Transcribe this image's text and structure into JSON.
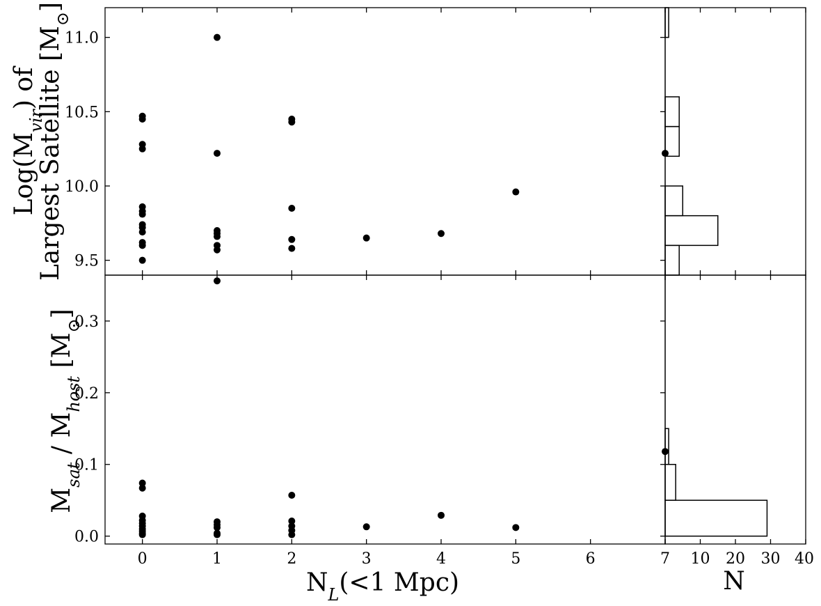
{
  "chart_data": [
    {
      "id": "top_scatter",
      "type": "scatter",
      "title": "",
      "xlabel_parts": [
        "N",
        "L",
        "(<1 Mpc)"
      ],
      "ylabel_lines": [
        [
          "Log(M",
          "vir",
          ") of"
        ],
        [
          "Largest Satellite [M",
          "⊙",
          "]"
        ]
      ],
      "xlim": [
        -0.5,
        7
      ],
      "ylim": [
        9.4,
        11.2
      ],
      "x_ticks": [
        0,
        1,
        2,
        3,
        4,
        5,
        6,
        7
      ],
      "y_ticks": [
        9.5,
        10.0,
        10.5,
        11.0
      ],
      "y_tick_labels": [
        "9.5",
        "10.0",
        "10.5",
        "11.0"
      ],
      "grid": false,
      "points": [
        {
          "x": 0,
          "y": 10.47
        },
        {
          "x": 0,
          "y": 10.45
        },
        {
          "x": 0,
          "y": 10.28
        },
        {
          "x": 0,
          "y": 10.25
        },
        {
          "x": 0,
          "y": 9.86
        },
        {
          "x": 0,
          "y": 9.83
        },
        {
          "x": 0,
          "y": 9.81
        },
        {
          "x": 0,
          "y": 9.74
        },
        {
          "x": 0,
          "y": 9.72
        },
        {
          "x": 0,
          "y": 9.69
        },
        {
          "x": 0,
          "y": 9.62
        },
        {
          "x": 0,
          "y": 9.6
        },
        {
          "x": 0,
          "y": 9.5
        },
        {
          "x": 1,
          "y": 11.0
        },
        {
          "x": 1,
          "y": 10.22
        },
        {
          "x": 1,
          "y": 9.7
        },
        {
          "x": 1,
          "y": 9.68
        },
        {
          "x": 1,
          "y": 9.66
        },
        {
          "x": 1,
          "y": 9.6
        },
        {
          "x": 1,
          "y": 9.57
        },
        {
          "x": 2,
          "y": 10.45
        },
        {
          "x": 2,
          "y": 10.43
        },
        {
          "x": 2,
          "y": 9.85
        },
        {
          "x": 2,
          "y": 9.64
        },
        {
          "x": 2,
          "y": 9.58
        },
        {
          "x": 3,
          "y": 9.65
        },
        {
          "x": 4,
          "y": 9.68
        },
        {
          "x": 5,
          "y": 9.96
        },
        {
          "x": 7,
          "y": 10.22
        }
      ]
    },
    {
      "id": "bottom_scatter",
      "type": "scatter",
      "title": "",
      "xlabel_parts": [
        "N",
        "L",
        "(<1 Mpc)"
      ],
      "ylabel_lines": [
        [
          "M",
          "sat",
          " / M",
          "host",
          " [M",
          "⊙",
          "]"
        ]
      ],
      "xlim": [
        -0.5,
        7
      ],
      "ylim": [
        -0.011,
        0.364
      ],
      "x_ticks": [
        0,
        1,
        2,
        3,
        4,
        5,
        6,
        7
      ],
      "x_tick_labels": [
        "0",
        "1",
        "2",
        "3",
        "4",
        "5",
        "6",
        "7"
      ],
      "y_ticks": [
        0.0,
        0.1,
        0.2,
        0.3
      ],
      "y_tick_labels": [
        "0.0",
        "0.1",
        "0.2",
        "0.3"
      ],
      "grid": false,
      "points": [
        {
          "x": 0,
          "y": 0.074
        },
        {
          "x": 0,
          "y": 0.067
        },
        {
          "x": 0,
          "y": 0.028
        },
        {
          "x": 0,
          "y": 0.022
        },
        {
          "x": 0,
          "y": 0.018
        },
        {
          "x": 0,
          "y": 0.014
        },
        {
          "x": 0,
          "y": 0.01
        },
        {
          "x": 0,
          "y": 0.007
        },
        {
          "x": 0,
          "y": 0.004
        },
        {
          "x": 0,
          "y": 0.002
        },
        {
          "x": 1,
          "y": 0.356
        },
        {
          "x": 1,
          "y": 0.02
        },
        {
          "x": 1,
          "y": 0.016
        },
        {
          "x": 1,
          "y": 0.012
        },
        {
          "x": 1,
          "y": 0.004
        },
        {
          "x": 1,
          "y": 0.002
        },
        {
          "x": 2,
          "y": 0.057
        },
        {
          "x": 2,
          "y": 0.021
        },
        {
          "x": 2,
          "y": 0.014
        },
        {
          "x": 2,
          "y": 0.008
        },
        {
          "x": 2,
          "y": 0.002
        },
        {
          "x": 3,
          "y": 0.013
        },
        {
          "x": 4,
          "y": 0.029
        },
        {
          "x": 5,
          "y": 0.012
        },
        {
          "x": 7,
          "y": 0.118
        }
      ]
    },
    {
      "id": "top_histogram",
      "type": "bar",
      "orientation": "horizontal",
      "title": "",
      "xlim": [
        0,
        40
      ],
      "ylim": [
        9.4,
        11.2
      ],
      "bins": [
        {
          "from": 9.4,
          "to": 9.6,
          "count": 4
        },
        {
          "from": 9.6,
          "to": 9.8,
          "count": 15
        },
        {
          "from": 9.8,
          "to": 10.0,
          "count": 5
        },
        {
          "from": 10.0,
          "to": 10.2,
          "count": 0
        },
        {
          "from": 10.2,
          "to": 10.4,
          "count": 4
        },
        {
          "from": 10.4,
          "to": 10.6,
          "count": 4
        },
        {
          "from": 10.6,
          "to": 10.8,
          "count": 0
        },
        {
          "from": 10.8,
          "to": 11.0,
          "count": 0
        },
        {
          "from": 11.0,
          "to": 11.2,
          "count": 1
        }
      ]
    },
    {
      "id": "bottom_histogram",
      "type": "bar",
      "orientation": "horizontal",
      "title": "",
      "xlabel": "N",
      "xlim": [
        0,
        40
      ],
      "ylim": [
        -0.011,
        0.364
      ],
      "x_ticks": [
        0,
        10,
        20,
        30,
        40
      ],
      "x_tick_labels": [
        "10",
        "20",
        "30",
        "40"
      ],
      "bins": [
        {
          "from": 0.0,
          "to": 0.05,
          "count": 29
        },
        {
          "from": 0.05,
          "to": 0.1,
          "count": 3
        },
        {
          "from": 0.1,
          "to": 0.15,
          "count": 1
        }
      ]
    }
  ]
}
